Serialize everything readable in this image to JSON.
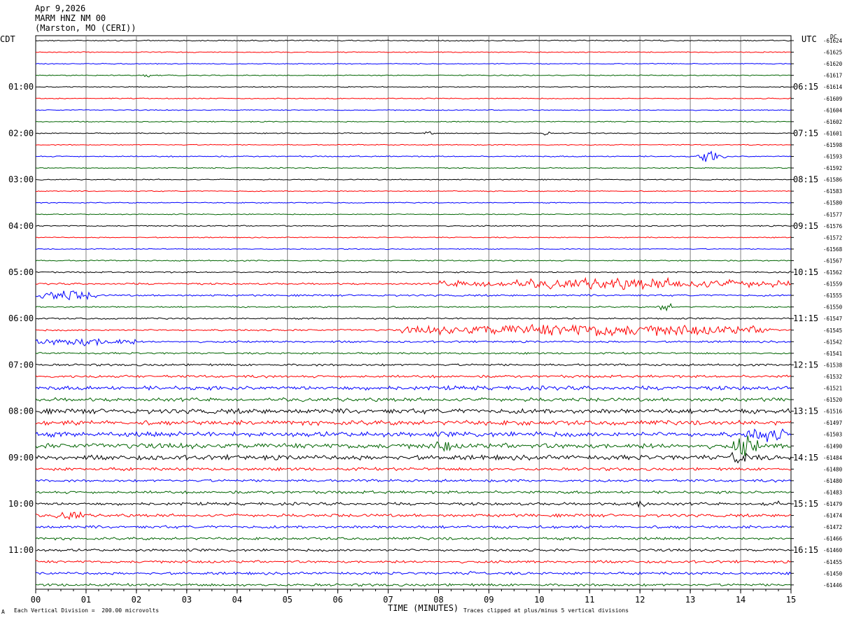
{
  "header": {
    "date": "Apr 9,2026",
    "station": "MARM HNZ NM 00",
    "location": "(Marston, MO (CERI))"
  },
  "left_tz": "CDT",
  "right_tz": "UTC",
  "dc_label": "DC",
  "footer": {
    "scale_note": "Each Vertical Division =  200.00 microvolts",
    "xlabel": "TIME (MINUTES)",
    "clip_note": "Traces clipped at plus/minus 5 vertical divisions",
    "corner_mark": "A"
  },
  "chart_data": {
    "type": "line",
    "title": "MARM HNZ NM 00",
    "xlabel": "TIME (MINUTES)",
    "xlim": [
      0,
      15
    ],
    "x_ticks": [
      "00",
      "01",
      "02",
      "03",
      "04",
      "05",
      "06",
      "07",
      "08",
      "09",
      "10",
      "11",
      "12",
      "13",
      "14",
      "15"
    ],
    "grid": "vertical lines each minute",
    "trace_colors": [
      "#000000",
      "#ff0000",
      "#0000ff",
      "#006400"
    ],
    "left_time_labels": [
      {
        "row": 4,
        "text": "01:00"
      },
      {
        "row": 8,
        "text": "02:00"
      },
      {
        "row": 12,
        "text": "03:00"
      },
      {
        "row": 16,
        "text": "04:00"
      },
      {
        "row": 20,
        "text": "05:00"
      },
      {
        "row": 24,
        "text": "06:00"
      },
      {
        "row": 28,
        "text": "07:00"
      },
      {
        "row": 32,
        "text": "08:00"
      },
      {
        "row": 36,
        "text": "09:00"
      },
      {
        "row": 40,
        "text": "10:00"
      },
      {
        "row": 44,
        "text": "11:00"
      }
    ],
    "right_time_labels": [
      {
        "row": 4,
        "text": "06:15"
      },
      {
        "row": 8,
        "text": "07:15"
      },
      {
        "row": 12,
        "text": "08:15"
      },
      {
        "row": 16,
        "text": "09:15"
      },
      {
        "row": 20,
        "text": "10:15"
      },
      {
        "row": 24,
        "text": "11:15"
      },
      {
        "row": 28,
        "text": "12:15"
      },
      {
        "row": 32,
        "text": "13:15"
      },
      {
        "row": 36,
        "text": "14:15"
      },
      {
        "row": 40,
        "text": "15:15"
      },
      {
        "row": 44,
        "text": "16:15"
      }
    ],
    "dc_offsets": [
      "-61624",
      "-61625",
      "-61620",
      "-61617",
      "-61614",
      "-61609",
      "-61604",
      "-61602",
      "-61601",
      "-61598",
      "-61593",
      "-61592",
      "-61586",
      "-61583",
      "-61580",
      "-61577",
      "-61576",
      "-61572",
      "-61568",
      "-61567",
      "-61562",
      "-61559",
      "-61555",
      "-61550",
      "-61547",
      "-61545",
      "-61542",
      "-61541",
      "-61538",
      "-61532",
      "-61521",
      "-61520",
      "-61516",
      "-61497",
      "-61503",
      "-61490",
      "-61484",
      "-61480",
      "-61480",
      "-61483",
      "-61479",
      "-61474",
      "-61472",
      "-61466",
      "-61460",
      "-61455",
      "-61450",
      "-61446"
    ],
    "trace_noise_level": [
      0.6,
      0.5,
      0.5,
      0.5,
      0.5,
      0.5,
      0.5,
      0.5,
      0.5,
      0.5,
      0.6,
      0.5,
      0.5,
      0.5,
      0.5,
      0.5,
      0.6,
      0.5,
      0.5,
      0.6,
      0.7,
      0.9,
      0.9,
      0.7,
      0.8,
      0.9,
      1.0,
      0.9,
      1.1,
      1.3,
      2.0,
      1.8,
      2.4,
      2.3,
      2.5,
      2.6,
      2.4,
      1.5,
      1.3,
      1.4,
      1.4,
      1.5,
      1.4,
      1.3,
      1.3,
      1.3,
      1.3,
      1.3
    ],
    "events": [
      {
        "row": 3,
        "x": 2.2,
        "amp": 3,
        "width": 0.15
      },
      {
        "row": 8,
        "x": 7.8,
        "amp": 3,
        "width": 0.2
      },
      {
        "row": 8,
        "x": 10.1,
        "amp": 3,
        "width": 0.2
      },
      {
        "row": 10,
        "x": 13.4,
        "amp": 6,
        "width": 0.6
      },
      {
        "row": 21,
        "x": 11.5,
        "amp": 6,
        "width": 7.0
      },
      {
        "row": 22,
        "x": 0.6,
        "amp": 6,
        "width": 1.2
      },
      {
        "row": 23,
        "x": 12.5,
        "amp": 5,
        "width": 0.3
      },
      {
        "row": 25,
        "x": 11.0,
        "amp": 7,
        "width": 7.5
      },
      {
        "row": 26,
        "x": 1.0,
        "amp": 5,
        "width": 2.0
      },
      {
        "row": 34,
        "x": 14.5,
        "amp": 9,
        "width": 0.8
      },
      {
        "row": 35,
        "x": 14.1,
        "amp": 14,
        "width": 0.5
      },
      {
        "row": 36,
        "x": 14.0,
        "amp": 10,
        "width": 0.4
      },
      {
        "row": 35,
        "x": 8.1,
        "amp": 8,
        "width": 0.3
      },
      {
        "row": 40,
        "x": 12.0,
        "amp": 5,
        "width": 0.4
      },
      {
        "row": 40,
        "x": 14.6,
        "amp": 5,
        "width": 0.4
      },
      {
        "row": 41,
        "x": 0.7,
        "amp": 6,
        "width": 0.6
      },
      {
        "row": 46,
        "x": 8.7,
        "amp": 3,
        "width": 0.3
      }
    ]
  }
}
